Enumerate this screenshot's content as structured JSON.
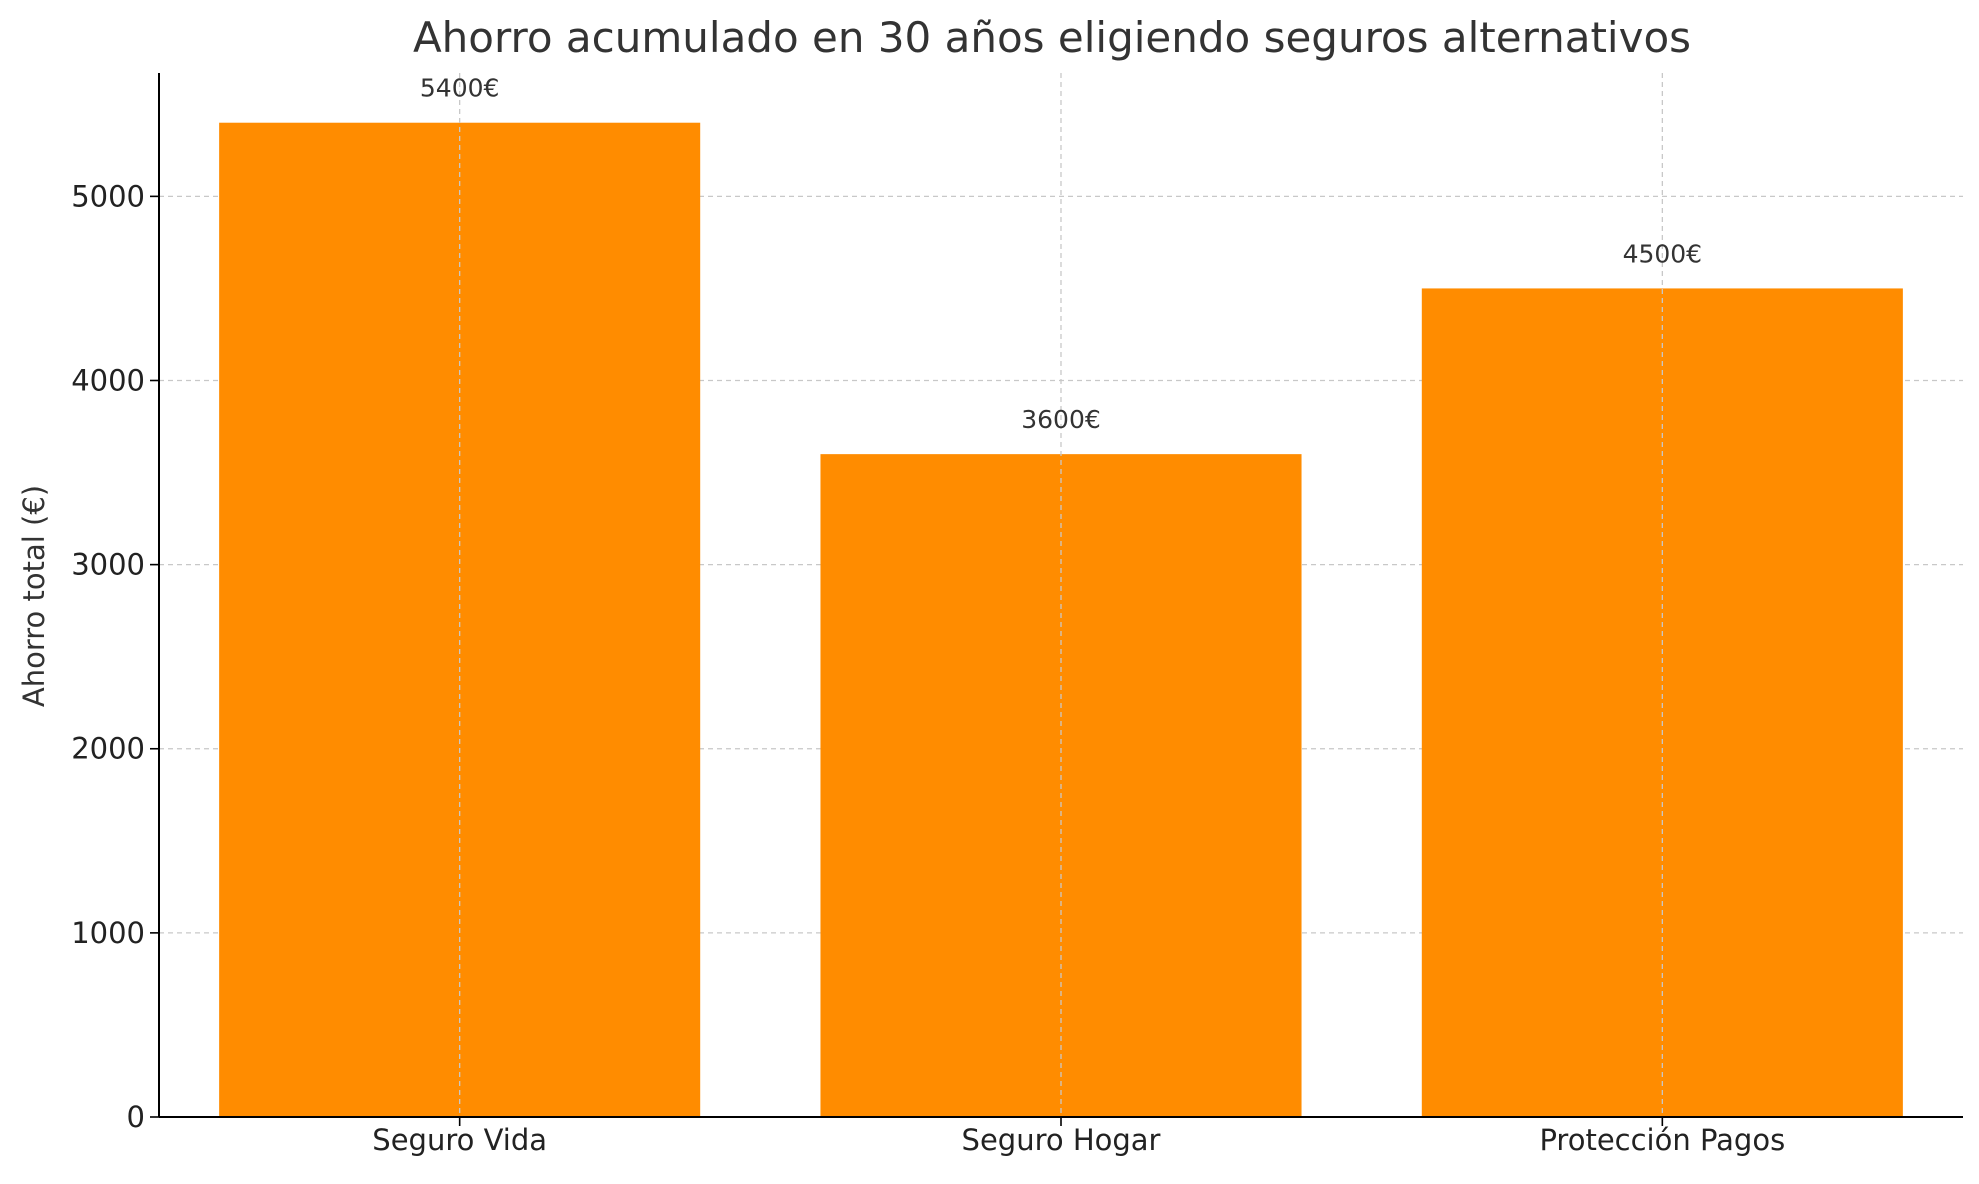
{
  "chart_data": {
    "type": "bar",
    "title": "Ahorro acumulado en 30 años eligiendo seguros alternativos",
    "xlabel": "",
    "ylabel": "Ahorro total (€)",
    "categories": [
      "Seguro Vida",
      "Seguro Hogar",
      "Protección Pagos"
    ],
    "values": [
      5400,
      3600,
      4500
    ],
    "value_labels": [
      "5400€",
      "3600€",
      "4500€"
    ],
    "yticks": [
      0,
      1000,
      2000,
      3000,
      4000,
      5000
    ],
    "ylim": [
      0,
      5670
    ],
    "grid": true,
    "legend": "none",
    "bar_color": "#FF8C00"
  }
}
